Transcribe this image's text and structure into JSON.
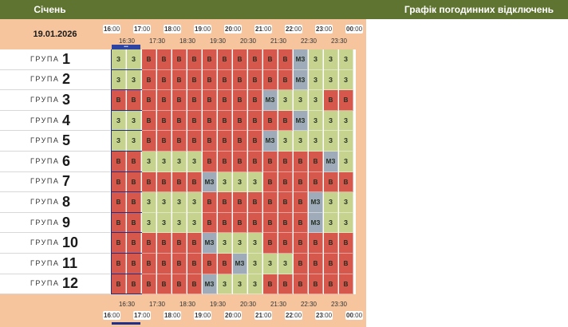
{
  "header": {
    "month": "Січень",
    "title": "Графік погодинних відключень"
  },
  "date": "19.01.2026",
  "hours": [
    "16",
    "17",
    "18",
    "19",
    "20",
    "21",
    "22",
    "23",
    "00"
  ],
  "hour_suffix": ":00",
  "half_hours": [
    "16:30",
    "17:30",
    "18:30",
    "19:30",
    "20:30",
    "21:30",
    "22:30",
    "23:30"
  ],
  "group_word": "ГРУПА",
  "legend_codes": {
    "on": "З",
    "off": "В",
    "maybe": "МЗ"
  },
  "colors": {
    "on": "#c5d38f",
    "off": "#d6574b",
    "maybe": "#9fabb8",
    "header": "#5f7430",
    "panel": "#f6c59d"
  },
  "groups": [
    {
      "number": "1",
      "slots": [
        "З",
        "З",
        "В",
        "В",
        "В",
        "В",
        "В",
        "В",
        "В",
        "В",
        "В",
        "В",
        "МЗ",
        "З",
        "З",
        "З"
      ]
    },
    {
      "number": "2",
      "slots": [
        "З",
        "З",
        "В",
        "В",
        "В",
        "В",
        "В",
        "В",
        "В",
        "В",
        "В",
        "В",
        "МЗ",
        "З",
        "З",
        "З"
      ]
    },
    {
      "number": "3",
      "slots": [
        "В",
        "В",
        "В",
        "В",
        "В",
        "В",
        "В",
        "В",
        "В",
        "В",
        "МЗ",
        "З",
        "З",
        "З",
        "В",
        "В"
      ]
    },
    {
      "number": "4",
      "slots": [
        "З",
        "З",
        "В",
        "В",
        "В",
        "В",
        "В",
        "В",
        "В",
        "В",
        "В",
        "В",
        "МЗ",
        "З",
        "З",
        "З"
      ]
    },
    {
      "number": "5",
      "slots": [
        "З",
        "З",
        "В",
        "В",
        "В",
        "В",
        "В",
        "В",
        "В",
        "В",
        "МЗ",
        "З",
        "З",
        "З",
        "З",
        "З"
      ]
    },
    {
      "number": "6",
      "slots": [
        "В",
        "В",
        "З",
        "З",
        "З",
        "З",
        "В",
        "В",
        "В",
        "В",
        "В",
        "В",
        "В",
        "В",
        "МЗ",
        "З"
      ]
    },
    {
      "number": "7",
      "slots": [
        "В",
        "В",
        "В",
        "В",
        "В",
        "В",
        "МЗ",
        "З",
        "З",
        "З",
        "В",
        "В",
        "В",
        "В",
        "В",
        "В"
      ]
    },
    {
      "number": "8",
      "slots": [
        "В",
        "В",
        "З",
        "З",
        "З",
        "З",
        "В",
        "В",
        "В",
        "В",
        "В",
        "В",
        "В",
        "МЗ",
        "З",
        "З"
      ]
    },
    {
      "number": "9",
      "slots": [
        "В",
        "В",
        "З",
        "З",
        "З",
        "З",
        "В",
        "В",
        "В",
        "В",
        "В",
        "В",
        "В",
        "МЗ",
        "З",
        "З"
      ]
    },
    {
      "number": "10",
      "slots": [
        "В",
        "В",
        "В",
        "В",
        "В",
        "В",
        "МЗ",
        "З",
        "З",
        "З",
        "В",
        "В",
        "В",
        "В",
        "В",
        "В"
      ]
    },
    {
      "number": "11",
      "slots": [
        "В",
        "В",
        "В",
        "В",
        "В",
        "В",
        "В",
        "В",
        "МЗ",
        "З",
        "З",
        "З",
        "В",
        "В",
        "В",
        "В"
      ]
    },
    {
      "number": "12",
      "slots": [
        "В",
        "В",
        "В",
        "В",
        "В",
        "В",
        "МЗ",
        "З",
        "З",
        "З",
        "В",
        "В",
        "В",
        "В",
        "В",
        "В"
      ]
    }
  ]
}
